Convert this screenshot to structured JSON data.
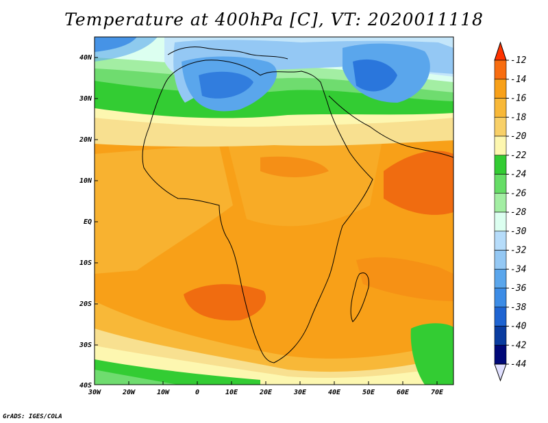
{
  "title": "Temperature at 400hPa [C], VT: 2020011118",
  "credit": "GrADS: IGES/COLA",
  "map": {
    "lon_labels": [
      "30W",
      "20W",
      "10W",
      "0",
      "10E",
      "20E",
      "30E",
      "40E",
      "50E",
      "60E",
      "70E"
    ],
    "lat_labels": [
      "40N",
      "30N",
      "20N",
      "10N",
      "EQ",
      "10S",
      "20S",
      "30S",
      "40S"
    ],
    "region_colors": {
      "sea_orange": "#f8a018",
      "hot_core": "#f06c10",
      "warm_band": "#f8b838",
      "yellow_band": "#f8e090",
      "pale_yellow": "#fdf7b0",
      "green_dark": "#33cc33",
      "green_mid": "#6fdc6f",
      "green_light": "#a3eea3",
      "mint": "#dcfff0",
      "blue_pale": "#c4e6fa",
      "blue_light": "#94c8f4",
      "blue_mid": "#5aa6ec",
      "blue_deep": "#2a76dc"
    }
  },
  "colorbar": {
    "labels": [
      "-12",
      "-14",
      "-16",
      "-18",
      "-20",
      "-22",
      "-24",
      "-26",
      "-28",
      "-30",
      "-32",
      "-34",
      "-36",
      "-38",
      "-40",
      "-42",
      "-44"
    ],
    "colors": [
      "#ff3300",
      "#f86d10",
      "#f8a018",
      "#f8b838",
      "#f8d068",
      "#fdf7b0",
      "#33cc33",
      "#66dd66",
      "#a3eea3",
      "#dcfff0",
      "#b6dcfa",
      "#94c8f4",
      "#5aa6ec",
      "#3c8ce6",
      "#1e64d2",
      "#0a3ca0",
      "#000878",
      "#e0e0ff"
    ]
  }
}
